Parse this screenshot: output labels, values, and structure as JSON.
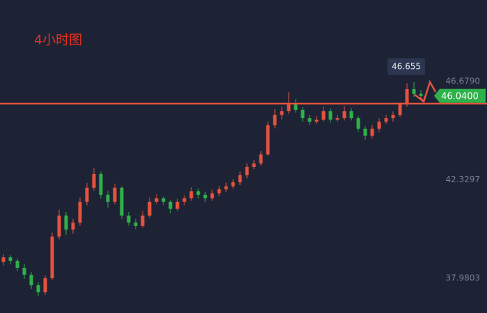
{
  "chart_data": {
    "type": "candlestick",
    "title": "4小时图",
    "up_color": "#e5533d",
    "down_color": "#2fb14a",
    "ohlc": [
      [
        38.7,
        39.05,
        38.55,
        38.9
      ],
      [
        38.9,
        39.0,
        38.6,
        38.75
      ],
      [
        38.75,
        38.85,
        38.3,
        38.44
      ],
      [
        38.44,
        38.6,
        37.95,
        38.13
      ],
      [
        38.13,
        38.25,
        37.5,
        37.67
      ],
      [
        37.67,
        37.8,
        37.2,
        37.36
      ],
      [
        37.36,
        38.1,
        37.25,
        37.98
      ],
      [
        37.98,
        40.0,
        37.9,
        39.82
      ],
      [
        39.82,
        41.0,
        39.7,
        40.75
      ],
      [
        40.75,
        40.9,
        39.9,
        40.13
      ],
      [
        40.13,
        40.6,
        39.95,
        40.44
      ],
      [
        40.44,
        41.55,
        40.3,
        41.36
      ],
      [
        41.36,
        42.2,
        41.2,
        41.98
      ],
      [
        41.98,
        42.85,
        41.85,
        42.59
      ],
      [
        42.59,
        42.7,
        41.5,
        41.67
      ],
      [
        41.67,
        41.85,
        41.1,
        41.36
      ],
      [
        41.36,
        42.15,
        41.25,
        41.98
      ],
      [
        41.98,
        42.05,
        40.6,
        40.75
      ],
      [
        40.75,
        40.9,
        40.3,
        40.44
      ],
      [
        40.44,
        40.6,
        40.15,
        40.29
      ],
      [
        40.29,
        40.95,
        40.2,
        40.75
      ],
      [
        40.75,
        41.55,
        40.65,
        41.36
      ],
      [
        41.36,
        41.7,
        41.25,
        41.51
      ],
      [
        41.51,
        41.6,
        41.2,
        41.36
      ],
      [
        41.36,
        41.45,
        40.85,
        41.05
      ],
      [
        41.05,
        41.5,
        40.95,
        41.36
      ],
      [
        41.36,
        41.65,
        41.2,
        41.51
      ],
      [
        41.51,
        42.0,
        41.4,
        41.82
      ],
      [
        41.82,
        41.95,
        41.5,
        41.67
      ],
      [
        41.67,
        41.8,
        41.35,
        41.51
      ],
      [
        41.51,
        41.9,
        41.4,
        41.73
      ],
      [
        41.73,
        42.05,
        41.6,
        41.91
      ],
      [
        41.91,
        42.2,
        41.8,
        42.04
      ],
      [
        42.04,
        42.35,
        41.95,
        42.22
      ],
      [
        42.22,
        42.7,
        42.1,
        42.53
      ],
      [
        42.53,
        43.05,
        42.4,
        42.9
      ],
      [
        42.9,
        43.2,
        42.8,
        43.05
      ],
      [
        43.05,
        43.6,
        42.95,
        43.45
      ],
      [
        43.45,
        44.9,
        43.4,
        44.74
      ],
      [
        44.74,
        45.45,
        44.6,
        45.2
      ],
      [
        45.2,
        45.55,
        45.0,
        45.36
      ],
      [
        45.36,
        46.2,
        45.25,
        45.66
      ],
      [
        45.66,
        45.9,
        45.3,
        45.42
      ],
      [
        45.42,
        45.55,
        44.9,
        45.05
      ],
      [
        45.05,
        45.2,
        44.75,
        44.9
      ],
      [
        44.9,
        45.15,
        44.8,
        44.99
      ],
      [
        44.99,
        45.55,
        44.9,
        45.36
      ],
      [
        45.36,
        45.5,
        44.85,
        44.99
      ],
      [
        44.99,
        45.2,
        44.9,
        45.05
      ],
      [
        45.05,
        45.6,
        44.95,
        45.36
      ],
      [
        45.36,
        45.5,
        44.95,
        45.05
      ],
      [
        45.05,
        45.15,
        44.45,
        44.59
      ],
      [
        44.59,
        44.7,
        44.1,
        44.28
      ],
      [
        44.28,
        44.75,
        44.15,
        44.59
      ],
      [
        44.59,
        45.05,
        44.45,
        44.9
      ],
      [
        44.9,
        45.2,
        44.8,
        45.05
      ],
      [
        45.05,
        45.35,
        44.9,
        45.2
      ],
      [
        45.2,
        45.75,
        45.1,
        45.66
      ],
      [
        45.66,
        46.6,
        45.55,
        46.34
      ],
      [
        46.34,
        46.65,
        46.0,
        46.13
      ],
      [
        46.13,
        46.3,
        45.9,
        46.04
      ]
    ],
    "ylim": [
      36.443,
      50.276
    ],
    "yticks": [
      {
        "value": 37.9803,
        "label": "37.9803"
      },
      {
        "value": 42.3297,
        "label": "42.3297"
      },
      {
        "value": 46.679,
        "label": "46.6790"
      }
    ],
    "level_line": {
      "value": 45.695,
      "color": "#e5533d"
    },
    "last_price": {
      "value": 46.04,
      "label": "46.0400",
      "color": "#2fb14a"
    },
    "tooltip": 46.655
  }
}
